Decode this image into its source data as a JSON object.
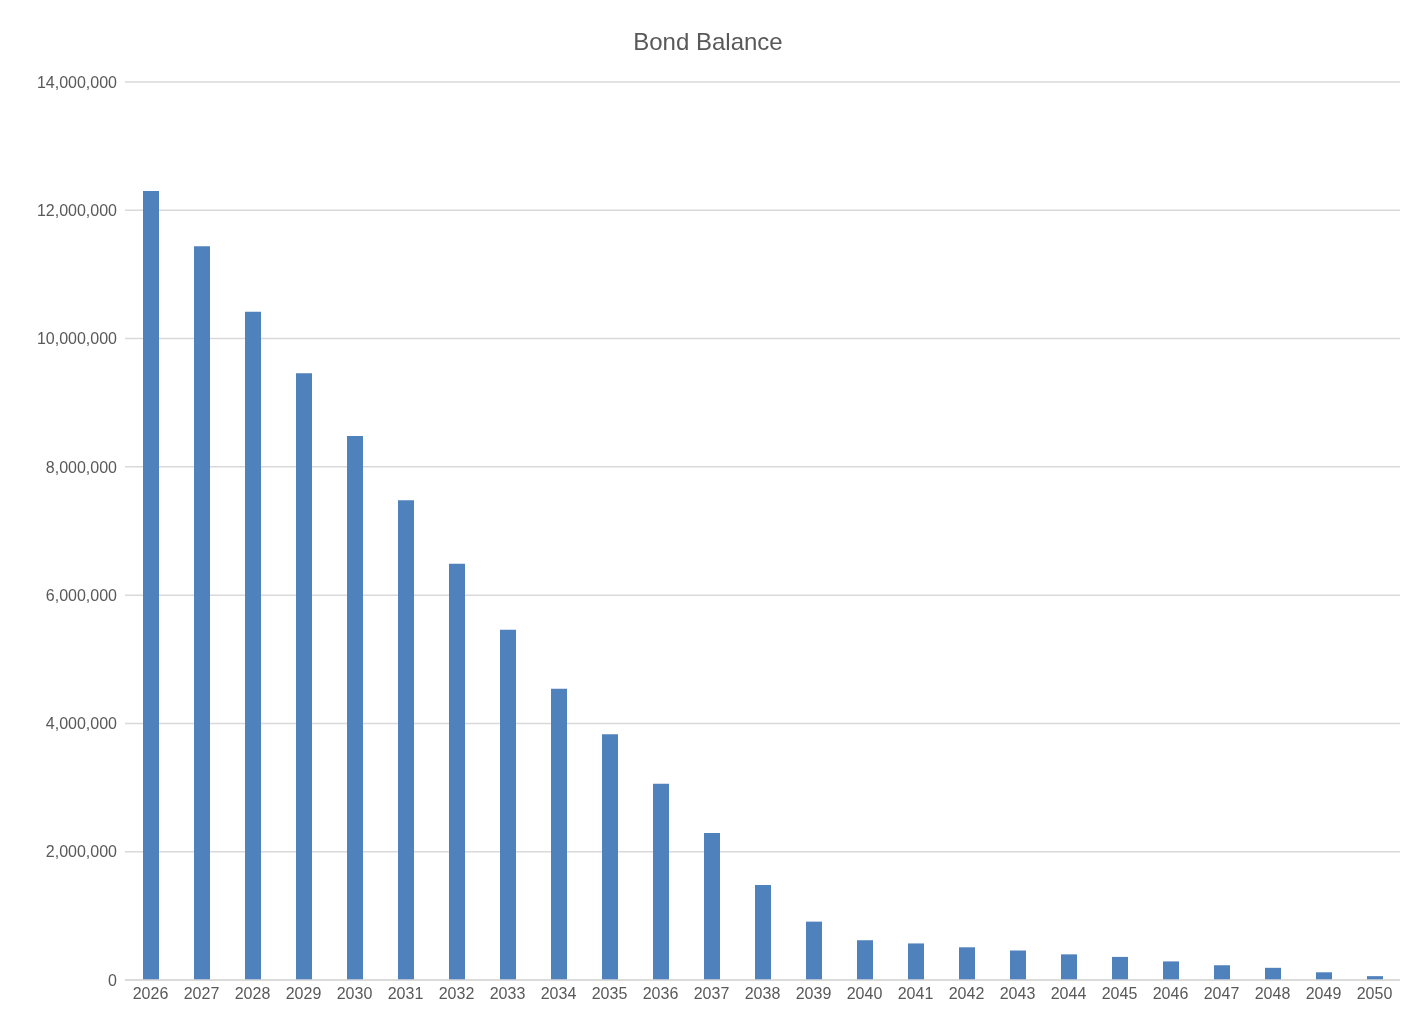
{
  "chart_data": {
    "type": "bar",
    "title": "Bond Balance",
    "categories": [
      "2026",
      "2027",
      "2028",
      "2029",
      "2030",
      "2031",
      "2032",
      "2033",
      "2034",
      "2035",
      "2036",
      "2037",
      "2038",
      "2039",
      "2040",
      "2041",
      "2042",
      "2043",
      "2044",
      "2045",
      "2046",
      "2047",
      "2048",
      "2049",
      "2050"
    ],
    "values": [
      12300000,
      11440000,
      10420000,
      9460000,
      8480000,
      7480000,
      6490000,
      5460000,
      4540000,
      3830000,
      3060000,
      2290000,
      1480000,
      910000,
      620000,
      570000,
      510000,
      460000,
      400000,
      360000,
      290000,
      230000,
      190000,
      120000,
      60000
    ],
    "color": "#4f81bd",
    "ylim": [
      0,
      14000000
    ],
    "yticks": [
      0,
      {
        "value": 2000000,
        "label": "2,000,000"
      },
      {
        "value": 4000000,
        "label": "4,000,000"
      },
      {
        "value": 6000000,
        "label": "6,000,000"
      },
      {
        "value": 8000000,
        "label": "8,000,000"
      },
      {
        "value": 10000000,
        "label": "10,000,000"
      },
      {
        "value": 12000000,
        "label": "12,000,000"
      },
      {
        "value": 14000000,
        "label": "14,000,000"
      }
    ],
    "grid": "y",
    "legend": false
  }
}
